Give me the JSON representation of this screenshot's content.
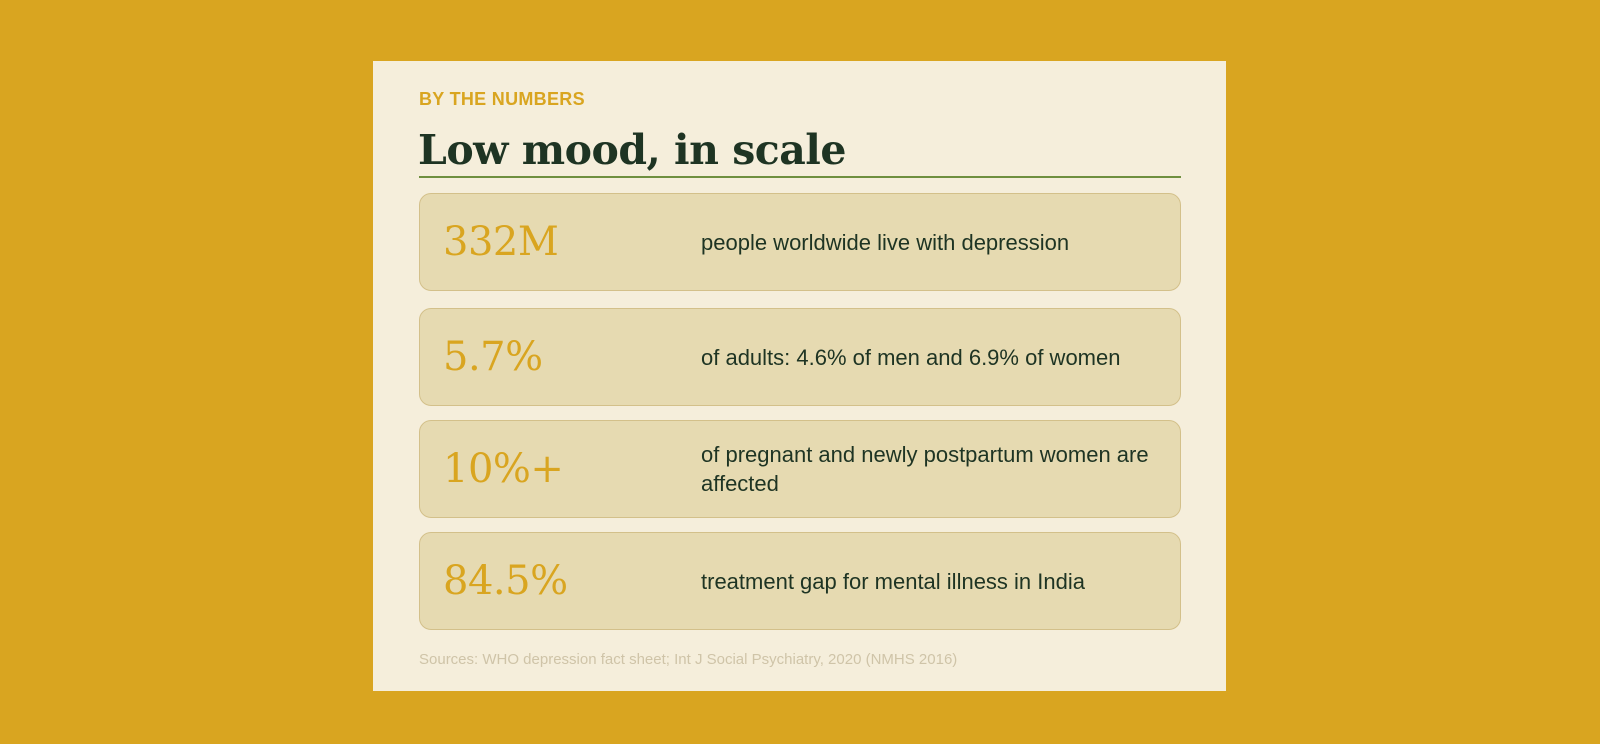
{
  "card": {
    "kicker": "BY THE NUMBERS",
    "title": "Low mood, in scale",
    "stats": [
      {
        "value": "332M",
        "description": "people worldwide live with depression"
      },
      {
        "value": "5.7%",
        "description": "of adults: 4.6% of men and 6.9% of women"
      },
      {
        "value": "10%+",
        "description": "of pregnant and newly postpartum women are affected"
      },
      {
        "value": "84.5%",
        "description": "treatment gap for mental illness in India"
      }
    ],
    "sources": "Sources: WHO depression fact sheet; Int J Social Psychiatry, 2020 (NMHS 2016)"
  },
  "colors": {
    "background": "#D9A520",
    "card": "#F5EEDB",
    "accent": "#D9A520",
    "text": "#1E3423",
    "rule": "#6F8F3F",
    "stat_fill": "#E6DAB1"
  }
}
